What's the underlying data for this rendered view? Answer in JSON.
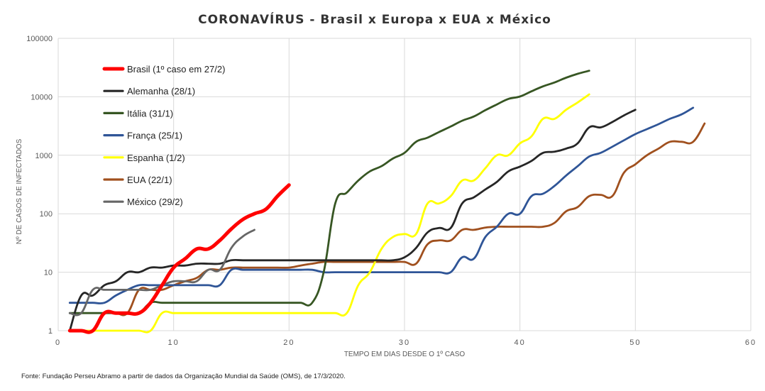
{
  "chart_data": {
    "type": "line",
    "title": "CORONAVÍRUS - Brasil x Europa x EUA x México",
    "xlabel": "TEMPO EM DIAS DESDE O 1º CASO",
    "ylabel": "Nº DE CASOS DE INFECTADOS",
    "xlim": [
      0,
      60
    ],
    "ylim": [
      1,
      100000
    ],
    "yscale": "log",
    "grid": true,
    "legend_position": "top-left",
    "x_ticks": [
      "0",
      "10",
      "20",
      "30",
      "40",
      "50",
      "60"
    ],
    "y_ticks": [
      "1",
      "10",
      "100",
      "1000",
      "10000",
      "100000"
    ],
    "series": [
      {
        "name": "Brasil (1º caso em 27/2)",
        "color": "#ff0000",
        "width": "thick",
        "x": [
          1,
          2,
          3,
          4,
          5,
          6,
          7,
          8,
          9,
          10,
          11,
          12,
          13,
          14,
          15,
          16,
          17,
          18,
          19,
          20
        ],
        "values": [
          1,
          1,
          1,
          2,
          2,
          2,
          2,
          3,
          6,
          12,
          17,
          25,
          25,
          35,
          55,
          80,
          100,
          120,
          200,
          310
        ]
      },
      {
        "name": "Alemanha (28/1)",
        "color": "#262626",
        "width": "normal",
        "x": [
          1,
          2,
          3,
          4,
          5,
          6,
          7,
          8,
          9,
          10,
          11,
          12,
          13,
          14,
          15,
          16,
          17,
          18,
          19,
          20,
          21,
          22,
          23,
          24,
          25,
          26,
          27,
          28,
          29,
          30,
          31,
          32,
          33,
          34,
          35,
          36,
          37,
          38,
          39,
          40,
          41,
          42,
          43,
          44,
          45,
          46,
          47,
          48,
          49,
          50
        ],
        "values": [
          1,
          4,
          4,
          6,
          7,
          10,
          10,
          12,
          12,
          13,
          13,
          14,
          14,
          14,
          16,
          16,
          16,
          16,
          16,
          16,
          16,
          16,
          16,
          16,
          16,
          16,
          16,
          16,
          16,
          18,
          26,
          48,
          57,
          57,
          150,
          190,
          260,
          350,
          530,
          640,
          800,
          1100,
          1150,
          1300,
          1600,
          3000,
          3000,
          3700,
          4800,
          6000
        ]
      },
      {
        "name": "Itália (31/1)",
        "color": "#375623",
        "width": "normal",
        "x": [
          1,
          2,
          3,
          4,
          5,
          6,
          7,
          8,
          9,
          10,
          11,
          12,
          13,
          14,
          15,
          16,
          17,
          18,
          19,
          20,
          21,
          22,
          23,
          24,
          25,
          26,
          27,
          28,
          29,
          30,
          31,
          32,
          33,
          34,
          35,
          36,
          37,
          38,
          39,
          40,
          41,
          42,
          43,
          44,
          45,
          46
        ],
        "values": [
          2,
          2,
          2,
          2,
          2,
          2,
          2,
          3,
          3,
          3,
          3,
          3,
          3,
          3,
          3,
          3,
          3,
          3,
          3,
          3,
          3,
          3,
          10,
          150,
          230,
          370,
          530,
          650,
          880,
          1100,
          1700,
          2000,
          2500,
          3100,
          3900,
          4600,
          5900,
          7400,
          9200,
          10100,
          12400,
          15100,
          17600,
          21200,
          24700,
          27900
        ]
      },
      {
        "name": "França (25/1)",
        "color": "#2f5597",
        "width": "normal",
        "x": [
          1,
          2,
          3,
          4,
          5,
          6,
          7,
          8,
          9,
          10,
          11,
          12,
          13,
          14,
          15,
          16,
          17,
          18,
          19,
          20,
          21,
          22,
          23,
          24,
          25,
          26,
          27,
          28,
          29,
          30,
          31,
          32,
          33,
          34,
          35,
          36,
          37,
          38,
          39,
          40,
          41,
          42,
          43,
          44,
          45,
          46,
          47,
          48,
          49,
          50,
          51,
          52,
          53,
          54,
          55
        ],
        "values": [
          3,
          3,
          3,
          3,
          4,
          5,
          6,
          6,
          6,
          6,
          6,
          6,
          6,
          6,
          11,
          11,
          11,
          11,
          11,
          11,
          11,
          11,
          10,
          10,
          10,
          10,
          10,
          10,
          10,
          10,
          10,
          10,
          10,
          10,
          18,
          17,
          40,
          60,
          100,
          100,
          200,
          220,
          300,
          450,
          650,
          950,
          1100,
          1400,
          1800,
          2300,
          2800,
          3400,
          4200,
          5000,
          6500
        ]
      },
      {
        "name": "Espanha (1/2)",
        "color": "#ffff00",
        "width": "normal",
        "x": [
          1,
          2,
          3,
          4,
          5,
          6,
          7,
          8,
          9,
          10,
          11,
          12,
          13,
          14,
          15,
          16,
          17,
          18,
          19,
          20,
          21,
          22,
          23,
          24,
          25,
          26,
          27,
          28,
          29,
          30,
          31,
          32,
          33,
          34,
          35,
          36,
          37,
          38,
          39,
          40,
          41,
          42,
          43,
          44,
          45,
          46
        ],
        "values": [
          1,
          1,
          1,
          1,
          1,
          1,
          1,
          1,
          2,
          2,
          2,
          2,
          2,
          2,
          2,
          2,
          2,
          2,
          2,
          2,
          2,
          2,
          2,
          2,
          2,
          6,
          10,
          25,
          40,
          45,
          45,
          150,
          150,
          200,
          370,
          370,
          600,
          1000,
          1000,
          1600,
          2100,
          4200,
          4200,
          6000,
          8000,
          11000
        ]
      },
      {
        "name": "EUA (22/1)",
        "color": "#a0501e",
        "width": "normal",
        "x": [
          1,
          2,
          3,
          4,
          5,
          6,
          7,
          8,
          9,
          10,
          11,
          12,
          13,
          14,
          15,
          16,
          17,
          18,
          19,
          20,
          21,
          22,
          23,
          24,
          25,
          26,
          27,
          28,
          29,
          30,
          31,
          32,
          33,
          34,
          35,
          36,
          37,
          38,
          39,
          40,
          41,
          42,
          43,
          44,
          45,
          46,
          47,
          48,
          49,
          50,
          51,
          52,
          53,
          54,
          55,
          56
        ],
        "values": [
          1,
          1,
          1,
          2,
          2,
          2,
          5,
          5,
          5,
          6,
          7,
          8,
          11,
          11,
          12,
          12,
          12,
          12,
          12,
          12,
          13,
          14,
          15,
          15,
          15,
          15,
          15,
          15,
          15,
          15,
          14,
          30,
          35,
          35,
          53,
          53,
          58,
          60,
          60,
          60,
          60,
          60,
          70,
          110,
          130,
          200,
          210,
          200,
          500,
          700,
          1000,
          1300,
          1700,
          1700,
          1700,
          3500
        ]
      },
      {
        "name": "México (29/2)",
        "color": "#666666",
        "width": "normal",
        "x": [
          1,
          2,
          3,
          4,
          5,
          6,
          7,
          8,
          9,
          10,
          11,
          12,
          13,
          14,
          15,
          16,
          17
        ],
        "values": [
          2,
          2,
          5,
          5,
          5,
          5,
          5,
          5,
          6,
          7,
          7,
          7,
          11,
          11,
          26,
          41,
          53
        ]
      }
    ],
    "source": "Fonte: Fundação Perseu Abramo a partir de dados da Organização Mundial da Saúde (OMS), de 17/3/2020."
  }
}
